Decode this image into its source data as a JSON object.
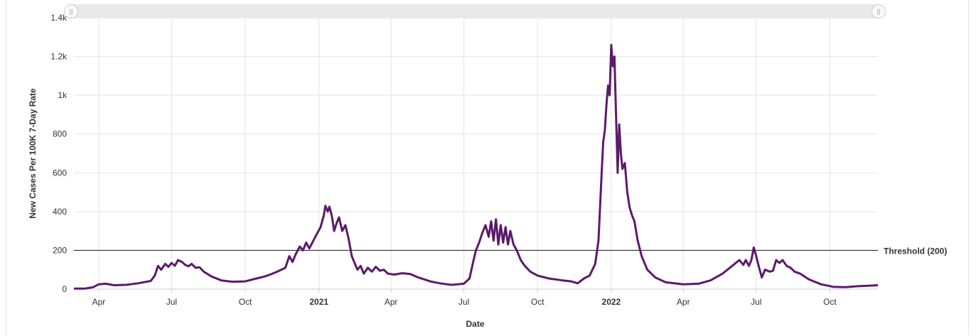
{
  "chart_data": {
    "type": "line",
    "xlabel": "Date",
    "ylabel": "New Cases Per 100K 7-Day Rate",
    "ylim": [
      0,
      1400
    ],
    "xlim": [
      "2020-03-01",
      "2022-11-30"
    ],
    "grid": true,
    "y_ticks": [
      {
        "value": 0,
        "label": "0"
      },
      {
        "value": 200,
        "label": "200"
      },
      {
        "value": 400,
        "label": "400"
      },
      {
        "value": 600,
        "label": "600"
      },
      {
        "value": 800,
        "label": "800"
      },
      {
        "value": 1000,
        "label": "1k"
      },
      {
        "value": 1200,
        "label": "1.2k"
      },
      {
        "value": 1400,
        "label": "1.4k"
      }
    ],
    "x_ticks": [
      {
        "date": "2020-04-01",
        "label": "Apr",
        "bold": false
      },
      {
        "date": "2020-07-01",
        "label": "Jul",
        "bold": false
      },
      {
        "date": "2020-10-01",
        "label": "Oct",
        "bold": false
      },
      {
        "date": "2021-01-01",
        "label": "2021",
        "bold": true
      },
      {
        "date": "2021-04-01",
        "label": "Apr",
        "bold": false
      },
      {
        "date": "2021-07-01",
        "label": "Jul",
        "bold": false
      },
      {
        "date": "2021-10-01",
        "label": "Oct",
        "bold": false
      },
      {
        "date": "2022-01-01",
        "label": "2022",
        "bold": true
      },
      {
        "date": "2022-04-01",
        "label": "Apr",
        "bold": false
      },
      {
        "date": "2022-07-01",
        "label": "Jul",
        "bold": false
      },
      {
        "date": "2022-10-01",
        "label": "Oct",
        "bold": false
      }
    ],
    "threshold": {
      "value": 200,
      "label": "Threshold (200)",
      "color": "#333333"
    },
    "series": [
      {
        "color": "#5c1a6b",
        "points": [
          [
            "2020-03-01",
            3
          ],
          [
            "2020-03-15",
            3
          ],
          [
            "2020-03-25",
            10
          ],
          [
            "2020-04-01",
            25
          ],
          [
            "2020-04-10",
            28
          ],
          [
            "2020-04-20",
            20
          ],
          [
            "2020-05-05",
            22
          ],
          [
            "2020-05-20",
            30
          ],
          [
            "2020-06-05",
            42
          ],
          [
            "2020-06-10",
            70
          ],
          [
            "2020-06-14",
            120
          ],
          [
            "2020-06-18",
            100
          ],
          [
            "2020-06-23",
            130
          ],
          [
            "2020-06-27",
            115
          ],
          [
            "2020-07-01",
            135
          ],
          [
            "2020-07-05",
            120
          ],
          [
            "2020-07-09",
            150
          ],
          [
            "2020-07-14",
            140
          ],
          [
            "2020-07-18",
            125
          ],
          [
            "2020-07-22",
            118
          ],
          [
            "2020-07-26",
            130
          ],
          [
            "2020-07-31",
            110
          ],
          [
            "2020-08-05",
            112
          ],
          [
            "2020-08-10",
            90
          ],
          [
            "2020-08-20",
            65
          ],
          [
            "2020-09-01",
            45
          ],
          [
            "2020-09-15",
            38
          ],
          [
            "2020-10-01",
            40
          ],
          [
            "2020-10-15",
            55
          ],
          [
            "2020-10-25",
            65
          ],
          [
            "2020-11-01",
            75
          ],
          [
            "2020-11-10",
            90
          ],
          [
            "2020-11-20",
            110
          ],
          [
            "2020-11-25",
            170
          ],
          [
            "2020-11-29",
            140
          ],
          [
            "2020-12-03",
            180
          ],
          [
            "2020-12-08",
            220
          ],
          [
            "2020-12-12",
            200
          ],
          [
            "2020-12-16",
            240
          ],
          [
            "2020-12-20",
            210
          ],
          [
            "2020-12-25",
            250
          ],
          [
            "2020-12-30",
            290
          ],
          [
            "2021-01-03",
            320
          ],
          [
            "2021-01-07",
            380
          ],
          [
            "2021-01-09",
            430
          ],
          [
            "2021-01-12",
            400
          ],
          [
            "2021-01-14",
            425
          ],
          [
            "2021-01-17",
            380
          ],
          [
            "2021-01-20",
            300
          ],
          [
            "2021-01-23",
            340
          ],
          [
            "2021-01-26",
            370
          ],
          [
            "2021-01-30",
            300
          ],
          [
            "2021-02-03",
            330
          ],
          [
            "2021-02-07",
            260
          ],
          [
            "2021-02-11",
            170
          ],
          [
            "2021-02-15",
            130
          ],
          [
            "2021-02-18",
            100
          ],
          [
            "2021-02-22",
            120
          ],
          [
            "2021-02-26",
            80
          ],
          [
            "2021-03-03",
            110
          ],
          [
            "2021-03-08",
            90
          ],
          [
            "2021-03-13",
            115
          ],
          [
            "2021-03-18",
            95
          ],
          [
            "2021-03-23",
            100
          ],
          [
            "2021-03-28",
            80
          ],
          [
            "2021-04-05",
            75
          ],
          [
            "2021-04-15",
            82
          ],
          [
            "2021-04-25",
            78
          ],
          [
            "2021-05-05",
            60
          ],
          [
            "2021-05-20",
            40
          ],
          [
            "2021-06-01",
            30
          ],
          [
            "2021-06-15",
            22
          ],
          [
            "2021-07-01",
            28
          ],
          [
            "2021-07-08",
            55
          ],
          [
            "2021-07-12",
            130
          ],
          [
            "2021-07-16",
            200
          ],
          [
            "2021-07-20",
            240
          ],
          [
            "2021-07-24",
            290
          ],
          [
            "2021-07-28",
            330
          ],
          [
            "2021-08-01",
            270
          ],
          [
            "2021-08-04",
            350
          ],
          [
            "2021-08-07",
            250
          ],
          [
            "2021-08-10",
            360
          ],
          [
            "2021-08-13",
            230
          ],
          [
            "2021-08-16",
            330
          ],
          [
            "2021-08-19",
            240
          ],
          [
            "2021-08-22",
            320
          ],
          [
            "2021-08-25",
            230
          ],
          [
            "2021-08-28",
            300
          ],
          [
            "2021-09-01",
            230
          ],
          [
            "2021-09-05",
            200
          ],
          [
            "2021-09-10",
            150
          ],
          [
            "2021-09-15",
            120
          ],
          [
            "2021-09-22",
            90
          ],
          [
            "2021-10-01",
            70
          ],
          [
            "2021-10-15",
            55
          ],
          [
            "2021-11-01",
            45
          ],
          [
            "2021-11-12",
            40
          ],
          [
            "2021-11-20",
            30
          ],
          [
            "2021-11-28",
            55
          ],
          [
            "2021-12-05",
            70
          ],
          [
            "2021-12-12",
            130
          ],
          [
            "2021-12-16",
            250
          ],
          [
            "2021-12-18",
            420
          ],
          [
            "2021-12-20",
            600
          ],
          [
            "2021-12-22",
            760
          ],
          [
            "2021-12-24",
            820
          ],
          [
            "2021-12-26",
            950
          ],
          [
            "2021-12-28",
            1050
          ],
          [
            "2021-12-30",
            1000
          ],
          [
            "2022-01-01",
            1260
          ],
          [
            "2022-01-03",
            1150
          ],
          [
            "2022-01-05",
            1200
          ],
          [
            "2022-01-07",
            900
          ],
          [
            "2022-01-09",
            600
          ],
          [
            "2022-01-11",
            850
          ],
          [
            "2022-01-13",
            700
          ],
          [
            "2022-01-15",
            620
          ],
          [
            "2022-01-18",
            650
          ],
          [
            "2022-01-21",
            500
          ],
          [
            "2022-01-24",
            420
          ],
          [
            "2022-01-27",
            380
          ],
          [
            "2022-01-30",
            350
          ],
          [
            "2022-02-03",
            250
          ],
          [
            "2022-02-08",
            170
          ],
          [
            "2022-02-15",
            100
          ],
          [
            "2022-02-25",
            60
          ],
          [
            "2022-03-10",
            35
          ],
          [
            "2022-04-01",
            25
          ],
          [
            "2022-04-20",
            28
          ],
          [
            "2022-05-05",
            45
          ],
          [
            "2022-05-20",
            80
          ],
          [
            "2022-06-01",
            120
          ],
          [
            "2022-06-10",
            150
          ],
          [
            "2022-06-15",
            125
          ],
          [
            "2022-06-18",
            150
          ],
          [
            "2022-06-22",
            120
          ],
          [
            "2022-06-25",
            150
          ],
          [
            "2022-06-28",
            215
          ],
          [
            "2022-07-01",
            170
          ],
          [
            "2022-07-04",
            120
          ],
          [
            "2022-07-08",
            60
          ],
          [
            "2022-07-12",
            100
          ],
          [
            "2022-07-18",
            90
          ],
          [
            "2022-07-22",
            95
          ],
          [
            "2022-07-26",
            150
          ],
          [
            "2022-07-30",
            135
          ],
          [
            "2022-08-03",
            150
          ],
          [
            "2022-08-08",
            120
          ],
          [
            "2022-08-13",
            110
          ],
          [
            "2022-08-18",
            90
          ],
          [
            "2022-08-25",
            80
          ],
          [
            "2022-09-05",
            50
          ],
          [
            "2022-09-20",
            25
          ],
          [
            "2022-10-05",
            12
          ],
          [
            "2022-10-20",
            10
          ],
          [
            "2022-11-05",
            15
          ],
          [
            "2022-11-20",
            18
          ],
          [
            "2022-11-30",
            20
          ]
        ]
      }
    ]
  },
  "navigator": {
    "left_handle_icon": "grip-icon",
    "right_handle_icon": "grip-icon",
    "handle_glyph": "||"
  }
}
